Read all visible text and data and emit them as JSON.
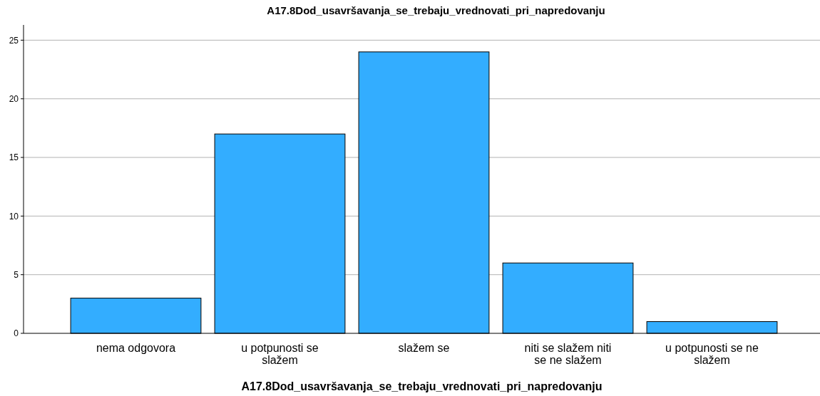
{
  "chart_data": {
    "type": "bar",
    "title": "A17.8Dod_usavršavanja_se_trebaju_vrednovati_pri_napredovanju",
    "xlabel": "A17.8Dod_usavršavanja_se_trebaju_vrednovati_pri_napredovanju",
    "categories": [
      "nema odgovora",
      "u potpunosti se slažem",
      "slažem se",
      "niti se slažem niti se ne slažem",
      "u potpunosti se ne slažem"
    ],
    "values": [
      3,
      17,
      24,
      6,
      1
    ],
    "color": "#33adff",
    "ylim": [
      0,
      26.3
    ],
    "yticks": [
      0,
      5,
      10,
      15,
      20,
      25
    ],
    "grid": "y"
  }
}
